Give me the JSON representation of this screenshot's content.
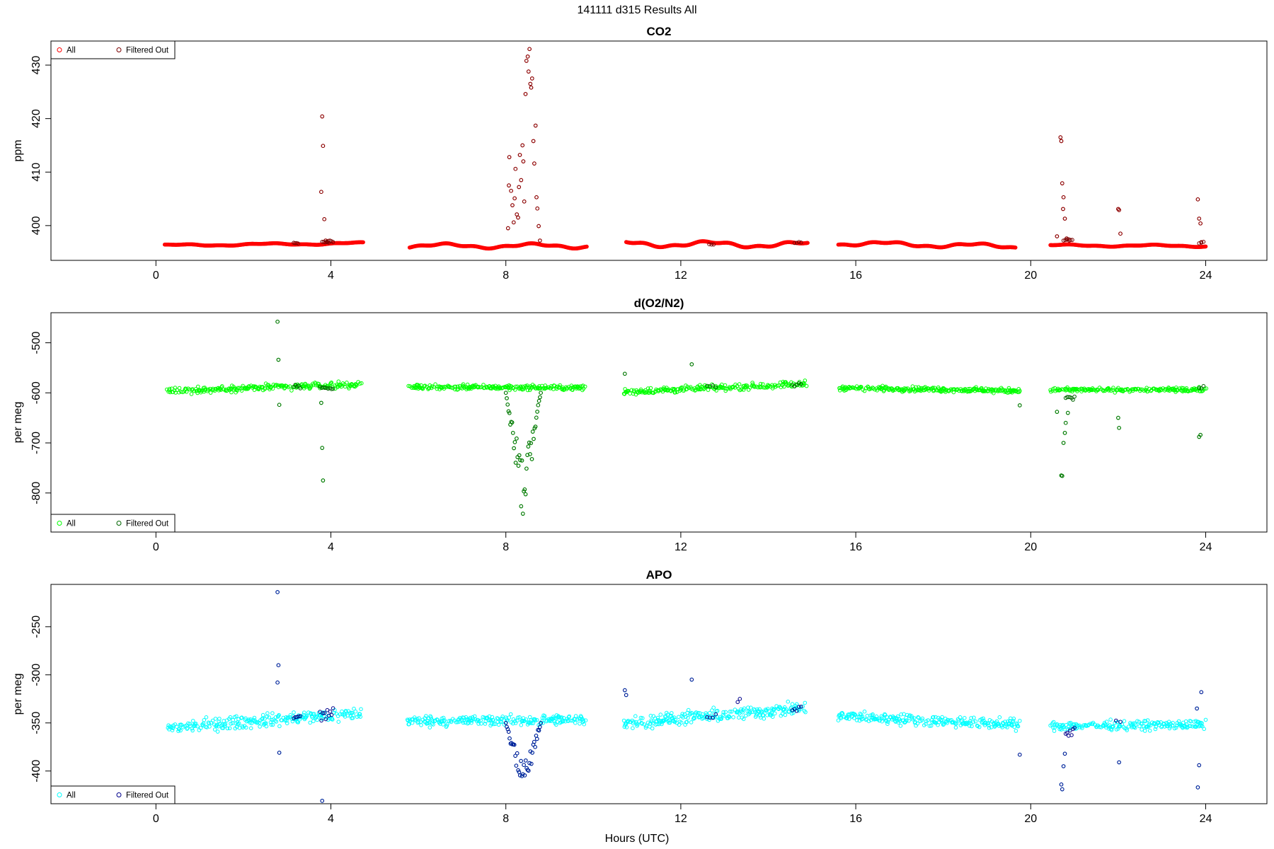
{
  "figure": {
    "title": "141111   d315   Results All",
    "xlabel": "Hours (UTC)"
  },
  "chart_data": [
    {
      "type": "scatter",
      "title": "CO2",
      "ylabel": "ppm",
      "xlim": [
        -2.4,
        25.4
      ],
      "ylim": [
        393.5,
        434.5
      ],
      "xticks": [
        0,
        4,
        8,
        12,
        16,
        20,
        24
      ],
      "yticks": [
        400,
        410,
        420,
        430
      ],
      "legend": {
        "position": "top-left",
        "entries": [
          "All",
          "Filtered Out"
        ]
      },
      "colors": {
        "all": "#ff0000",
        "filtered": "#7a0000"
      },
      "baseline_segments": [
        {
          "x": [
            0.2,
            4.75
          ],
          "y": [
            396.3,
            396.7
          ],
          "wave": 0.15
        },
        {
          "x": [
            5.8,
            9.85
          ],
          "y": [
            396.2,
            396.2
          ],
          "wave": 0.35
        },
        {
          "x": [
            10.75,
            14.9
          ],
          "y": [
            396.6,
            396.4
          ],
          "wave": 0.45
        },
        {
          "x": [
            15.6,
            19.65
          ],
          "y": [
            396.7,
            396.1
          ],
          "wave": 0.35
        },
        {
          "x": [
            20.45,
            24.0
          ],
          "y": [
            396.3,
            396.2
          ],
          "wave": 0.15
        }
      ],
      "outliers": [
        {
          "x": 3.8,
          "y": 420.4
        },
        {
          "x": 3.82,
          "y": 414.9
        },
        {
          "x": 3.78,
          "y": 406.3
        },
        {
          "x": 3.85,
          "y": 401.2
        },
        {
          "x": 3.88,
          "y": 397.2
        },
        {
          "x": 3.92,
          "y": 396.9
        },
        {
          "x": 3.95,
          "y": 396.8
        },
        {
          "x": 8.05,
          "y": 399.5
        },
        {
          "x": 8.07,
          "y": 407.5
        },
        {
          "x": 8.08,
          "y": 412.8
        },
        {
          "x": 8.12,
          "y": 406.5
        },
        {
          "x": 8.15,
          "y": 403.8
        },
        {
          "x": 8.18,
          "y": 400.6
        },
        {
          "x": 8.2,
          "y": 405.1
        },
        {
          "x": 8.22,
          "y": 410.6
        },
        {
          "x": 8.25,
          "y": 402.1
        },
        {
          "x": 8.28,
          "y": 401.5
        },
        {
          "x": 8.3,
          "y": 407.2
        },
        {
          "x": 8.32,
          "y": 413.2
        },
        {
          "x": 8.35,
          "y": 408.5
        },
        {
          "x": 8.38,
          "y": 415.0
        },
        {
          "x": 8.4,
          "y": 412.0
        },
        {
          "x": 8.42,
          "y": 404.5
        },
        {
          "x": 8.45,
          "y": 424.6
        },
        {
          "x": 8.47,
          "y": 430.8
        },
        {
          "x": 8.5,
          "y": 431.6
        },
        {
          "x": 8.52,
          "y": 428.8
        },
        {
          "x": 8.54,
          "y": 433.0
        },
        {
          "x": 8.56,
          "y": 426.5
        },
        {
          "x": 8.58,
          "y": 425.8
        },
        {
          "x": 8.6,
          "y": 427.5
        },
        {
          "x": 8.63,
          "y": 415.8
        },
        {
          "x": 8.65,
          "y": 411.6
        },
        {
          "x": 8.68,
          "y": 418.7
        },
        {
          "x": 8.7,
          "y": 405.3
        },
        {
          "x": 8.72,
          "y": 403.2
        },
        {
          "x": 8.75,
          "y": 399.9
        },
        {
          "x": 8.78,
          "y": 397.2
        },
        {
          "x": 20.6,
          "y": 398.0
        },
        {
          "x": 20.68,
          "y": 416.5
        },
        {
          "x": 20.7,
          "y": 415.8
        },
        {
          "x": 20.72,
          "y": 407.9
        },
        {
          "x": 20.74,
          "y": 403.1
        },
        {
          "x": 20.75,
          "y": 405.3
        },
        {
          "x": 20.78,
          "y": 401.3
        },
        {
          "x": 20.82,
          "y": 397.6
        },
        {
          "x": 20.88,
          "y": 397.2
        },
        {
          "x": 22.0,
          "y": 403.1
        },
        {
          "x": 22.02,
          "y": 402.9
        },
        {
          "x": 22.05,
          "y": 398.5
        },
        {
          "x": 23.82,
          "y": 404.9
        },
        {
          "x": 23.85,
          "y": 401.3
        },
        {
          "x": 23.88,
          "y": 400.4
        },
        {
          "x": 23.9,
          "y": 396.9
        }
      ],
      "filtered_clusters": [
        {
          "x": [
            3.15,
            3.25
          ],
          "y": 396.7,
          "count": 4
        },
        {
          "x": [
            3.8,
            4.05
          ],
          "y": 397.0,
          "count": 8
        },
        {
          "x": [
            12.65,
            12.75
          ],
          "y": 396.5,
          "count": 3
        },
        {
          "x": [
            14.6,
            14.75
          ],
          "y": 396.8,
          "count": 4
        },
        {
          "x": [
            20.75,
            20.95
          ],
          "y": 397.3,
          "count": 6
        },
        {
          "x": [
            23.85,
            23.95
          ],
          "y": 396.8,
          "count": 3
        }
      ]
    },
    {
      "type": "scatter",
      "title": "d(O2/N2)",
      "ylabel": "per meg",
      "xlim": [
        -2.4,
        25.4
      ],
      "ylim": [
        -878,
        -440
      ],
      "xticks": [
        0,
        4,
        8,
        12,
        16,
        20,
        24
      ],
      "yticks": [
        -500,
        -600,
        -700,
        -800
      ],
      "legend": {
        "position": "bottom-left",
        "entries": [
          "All",
          "Filtered Out"
        ]
      },
      "colors": {
        "all": "#00ff00",
        "filtered": "#006400"
      },
      "baseline_segments": [
        {
          "x": [
            0.25,
            4.7
          ],
          "y": [
            -596,
            -583
          ],
          "noise": 9
        },
        {
          "x": [
            5.75,
            9.8
          ],
          "y": [
            -588,
            -590
          ],
          "noise": 7
        },
        {
          "x": [
            10.7,
            14.85
          ],
          "y": [
            -598,
            -582
          ],
          "noise": 9
        },
        {
          "x": [
            15.6,
            19.75
          ],
          "y": [
            -590,
            -596
          ],
          "noise": 7
        },
        {
          "x": [
            20.45,
            24.0
          ],
          "y": [
            -594,
            -594
          ],
          "noise": 6
        }
      ],
      "outliers": [
        {
          "x": 2.78,
          "y": -458
        },
        {
          "x": 2.8,
          "y": -534
        },
        {
          "x": 2.82,
          "y": -624
        },
        {
          "x": 3.8,
          "y": -710
        },
        {
          "x": 3.82,
          "y": -775
        },
        {
          "x": 3.78,
          "y": -620
        },
        {
          "x": 10.72,
          "y": -562
        },
        {
          "x": 12.25,
          "y": -543
        },
        {
          "x": 19.75,
          "y": -625
        },
        {
          "x": 20.7,
          "y": -765
        },
        {
          "x": 20.72,
          "y": -766
        },
        {
          "x": 20.75,
          "y": -700
        },
        {
          "x": 20.78,
          "y": -680
        },
        {
          "x": 20.8,
          "y": -660
        },
        {
          "x": 20.85,
          "y": -640
        },
        {
          "x": 20.6,
          "y": -638
        },
        {
          "x": 22.0,
          "y": -650
        },
        {
          "x": 22.02,
          "y": -670
        },
        {
          "x": 23.85,
          "y": -688
        },
        {
          "x": 23.88,
          "y": -684
        }
      ],
      "filtered_clusters": [
        {
          "x": [
            3.15,
            3.3
          ],
          "y": -588,
          "count": 5
        },
        {
          "x": [
            3.75,
            4.05
          ],
          "y": -592,
          "count": 9
        },
        {
          "x": [
            12.6,
            12.8
          ],
          "y": -588,
          "count": 4
        },
        {
          "x": [
            14.55,
            14.75
          ],
          "y": -584,
          "count": 5
        },
        {
          "x": [
            20.8,
            21.0
          ],
          "y": -610,
          "count": 7
        },
        {
          "x": [
            23.85,
            23.95
          ],
          "y": -590,
          "count": 3
        }
      ],
      "dip_events": [
        {
          "x": [
            8.0,
            8.8
          ],
          "y_min": -860,
          "count": 40,
          "level": -600
        }
      ]
    },
    {
      "type": "scatter",
      "title": "APO",
      "ylabel": "per meg",
      "xlim": [
        -2.4,
        25.4
      ],
      "ylim": [
        -434,
        -206
      ],
      "xticks": [
        0,
        4,
        8,
        12,
        16,
        20,
        24
      ],
      "yticks": [
        -250,
        -300,
        -350,
        -400
      ],
      "legend": {
        "position": "bottom-left",
        "entries": [
          "All",
          "Filtered Out"
        ]
      },
      "colors": {
        "all": "#00ffff",
        "filtered": "#00008b"
      },
      "baseline_segments": [
        {
          "x": [
            0.25,
            4.7
          ],
          "y": [
            -355,
            -340
          ],
          "noise": 10
        },
        {
          "x": [
            5.75,
            9.8
          ],
          "y": [
            -348,
            -347
          ],
          "noise": 8
        },
        {
          "x": [
            10.7,
            14.85
          ],
          "y": [
            -350,
            -335
          ],
          "noise": 10
        },
        {
          "x": [
            15.6,
            19.75
          ],
          "y": [
            -343,
            -352
          ],
          "noise": 8
        },
        {
          "x": [
            20.45,
            24.0
          ],
          "y": [
            -353,
            -352
          ],
          "noise": 7
        }
      ],
      "outliers": [
        {
          "x": 2.78,
          "y": -214
        },
        {
          "x": 2.8,
          "y": -290
        },
        {
          "x": 2.78,
          "y": -308
        },
        {
          "x": 2.82,
          "y": -381
        },
        {
          "x": 3.8,
          "y": -431
        },
        {
          "x": 10.72,
          "y": -316
        },
        {
          "x": 10.75,
          "y": -321
        },
        {
          "x": 12.25,
          "y": -305
        },
        {
          "x": 19.75,
          "y": -383
        },
        {
          "x": 20.7,
          "y": -414
        },
        {
          "x": 20.72,
          "y": -419
        },
        {
          "x": 20.75,
          "y": -395
        },
        {
          "x": 20.78,
          "y": -382
        },
        {
          "x": 22.02,
          "y": -391
        },
        {
          "x": 23.85,
          "y": -394
        },
        {
          "x": 23.82,
          "y": -417
        },
        {
          "x": 23.9,
          "y": -318
        },
        {
          "x": 23.8,
          "y": -335
        }
      ],
      "filtered_clusters": [
        {
          "x": [
            3.15,
            3.3
          ],
          "y": -345,
          "count": 5
        },
        {
          "x": [
            3.75,
            4.05
          ],
          "y": -340,
          "count": 10
        },
        {
          "x": [
            12.6,
            12.8
          ],
          "y": -345,
          "count": 4
        },
        {
          "x": [
            13.3,
            13.35
          ],
          "y": -327,
          "count": 2
        },
        {
          "x": [
            14.55,
            14.75
          ],
          "y": -335,
          "count": 5
        },
        {
          "x": [
            20.8,
            21.0
          ],
          "y": -360,
          "count": 7
        },
        {
          "x": [
            21.95,
            22.05
          ],
          "y": -350,
          "count": 2
        }
      ],
      "dip_events": [
        {
          "x": [
            8.0,
            8.8
          ],
          "y_min": -430,
          "count": 38,
          "level": -350
        }
      ]
    }
  ]
}
